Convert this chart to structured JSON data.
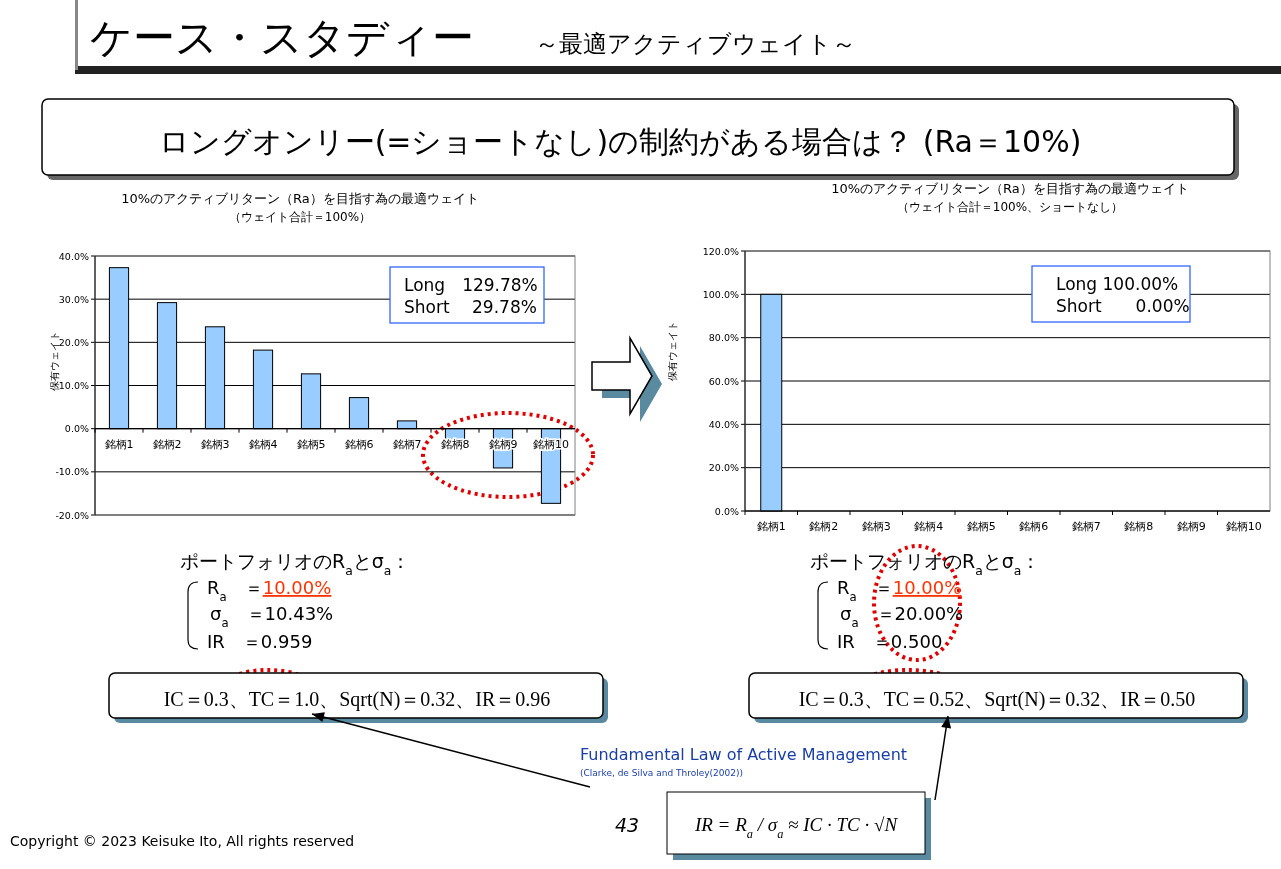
{
  "chart_data": [
    {
      "type": "bar",
      "title": "10%のアクティブリターン（Ra）を目指す為の最適ウェイト",
      "subtitle": "（ウェイト合計＝100%）",
      "ylabel": "保有ウェイト",
      "categories": [
        "銘柄1",
        "銘柄2",
        "銘柄3",
        "銘柄4",
        "銘柄5",
        "銘柄6",
        "銘柄7",
        "銘柄8",
        "銘柄9",
        "銘柄10"
      ],
      "values": [
        37.3,
        29.2,
        23.6,
        18.2,
        12.7,
        7.2,
        1.8,
        -3.3,
        -9.1,
        -17.3
      ],
      "color": "#99ccff",
      "ylim": [
        -20,
        40
      ],
      "yticks": [
        {
          "value": -20,
          "label": "-20.0%"
        },
        {
          "value": -10,
          "label": "-10.0%"
        },
        {
          "value": 0,
          "label": "0.0%"
        },
        {
          "value": 10,
          "label": "10.0%"
        },
        {
          "value": 20,
          "label": "20.0%"
        },
        {
          "value": 30,
          "label": "30.0%"
        },
        {
          "value": 40,
          "label": "40.0%"
        }
      ],
      "grid": "y",
      "annotations": [
        "Long　129.78%",
        "Short　 29.78%",
        "ポートフォリオのR$_{a}$とσ$_{a}$：",
        "R$_{a}$　＝10.00%",
        "σ$_{a}$　＝10.43%",
        "IR　＝0.959",
        "IC＝0.3、TC＝1.0、Sqrt(N)＝0.32、IR＝0.96",
        "ケース・スタディー",
        "～最適アクティブウェイト～",
        "ロングオンリー(=ショートなし)の制約がある場合は？ (Ra＝10%)",
        "Fundamental Law of Active Management",
        "(Clarke, de Silva and Throley(2002))",
        "IR = R$_{a}$ / σ$_{a}$ ≈ IC · TC · √N",
        "43",
        "Copyright © 2023 Keisuke Ito, All rights reserved"
      ]
    },
    {
      "type": "bar",
      "title": "10%のアクティブリターン（Ra）を目指す為の最適ウェイト",
      "subtitle": "（ウェイト合計＝100%、ショートなし）",
      "ylabel": "保有ウェイト",
      "categories": [
        "銘柄1",
        "銘柄2",
        "銘柄3",
        "銘柄4",
        "銘柄5",
        "銘柄6",
        "銘柄7",
        "銘柄8",
        "銘柄9",
        "銘柄10"
      ],
      "values": [
        100,
        0,
        0,
        0,
        0,
        0,
        0,
        0,
        0,
        0
      ],
      "color": "#99ccff",
      "ylim": [
        0,
        120
      ],
      "yticks": [
        {
          "value": 0,
          "label": "0.0%"
        },
        {
          "value": 20,
          "label": "20.0%"
        },
        {
          "value": 40,
          "label": "40.0%"
        },
        {
          "value": 60,
          "label": "60.0%"
        },
        {
          "value": 80,
          "label": "80.0%"
        },
        {
          "value": 100,
          "label": "100.0%"
        },
        {
          "value": 120,
          "label": "120.0%"
        }
      ],
      "grid": "y",
      "annotations": [
        "Long 100.00%",
        "Short　　0.00%",
        "ポートフォリオのR$_{a}$とσ$_{a}$：",
        "R$_{a}$　＝10.00%",
        "σ$_{a}$　＝20.00%",
        "IR　＝0.500",
        "IC＝0.3、TC＝0.52、Sqrt(N)＝0.32、IR＝0.50"
      ]
    }
  ]
}
